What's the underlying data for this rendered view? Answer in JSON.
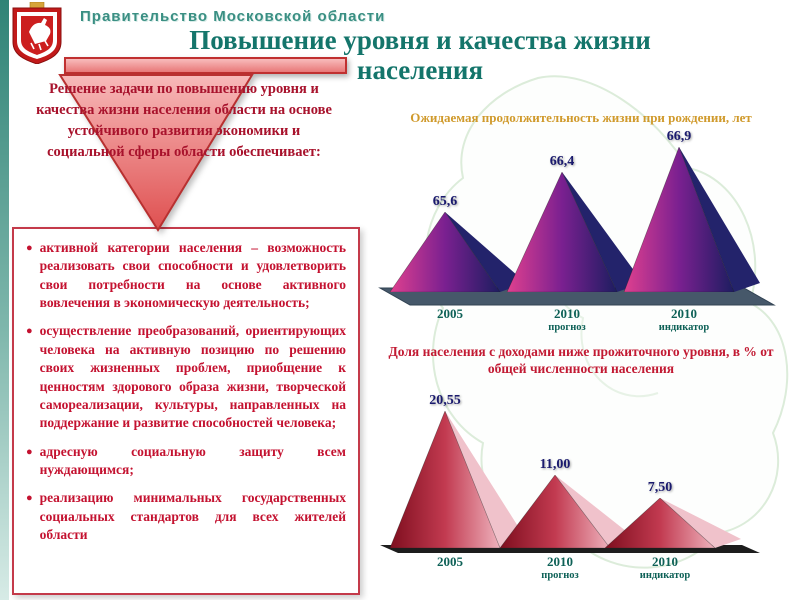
{
  "header": {
    "org_name": "Правительство Московской области",
    "title_lines": [
      "Повышение уровня и качества жизни",
      "населения"
    ]
  },
  "callout": {
    "text": "Решение задачи по повышению уровня и качества жизни населения области  на основе устойчивого развития экономики и социальной сферы области обеспечивает:"
  },
  "bullets": [
    "активной категории населения – возможность реализовать свои способности и удовлетворить свои потребности на основе активного вовлечения в экономическую деятельность;",
    "осуществление преобразований, ориентирующих человека на активную позицию по решению своих жизненных проблем, приобщение к ценностям здорового образа жизни, творческой самореализации, культуры, направленных на поддержание и развитие способностей человека;",
    "адресную социальную защиту всем нуждающимся;",
    "реализацию минимальных государственных социальных стандартов для всех жителей области"
  ],
  "chart_data": [
    {
      "type": "bar",
      "title": "Ожидаемая продолжительность жизни при рождении, лет",
      "categories": [
        "2005",
        "2010 прогноз",
        "2010 индикатор"
      ],
      "cat_top": [
        "2005",
        "2010",
        "2010"
      ],
      "cat_sub": [
        "",
        "прогноз",
        "индикатор"
      ],
      "values": [
        65.6,
        66.4,
        66.9
      ],
      "value_labels": [
        "65,6",
        "66,4",
        "66,9"
      ],
      "ylim": [
        64,
        67
      ],
      "legend": "none",
      "colors": {
        "stops": [
          "#e0408f",
          "#7a2090",
          "#1d1d60"
        ],
        "side": "#23236b"
      }
    },
    {
      "type": "bar",
      "title": "Доля населения с доходами ниже прожиточного уровня, в % от общей численности населения",
      "categories": [
        "2005",
        "2010 прогноз",
        "2010 индикатор"
      ],
      "cat_top": [
        "2005",
        "2010",
        "2010"
      ],
      "cat_sub": [
        "",
        "прогноз",
        "индикатор"
      ],
      "values": [
        20.55,
        11.0,
        7.5
      ],
      "value_labels": [
        "20,55",
        "11,00",
        "7,50"
      ],
      "ylim": [
        0,
        21
      ],
      "legend": "none",
      "colors": {
        "stops": [
          "#7e0e1e",
          "#c23a50",
          "#eeb2bd"
        ],
        "side": "#f0c2cb"
      }
    }
  ],
  "theme": {
    "accent_teal": "#14756b",
    "accent_red": "#c41230",
    "chart1_title_color": "#d09a2c",
    "chart2_title_color": "#c21a33",
    "callout_fill": "#e87878"
  }
}
